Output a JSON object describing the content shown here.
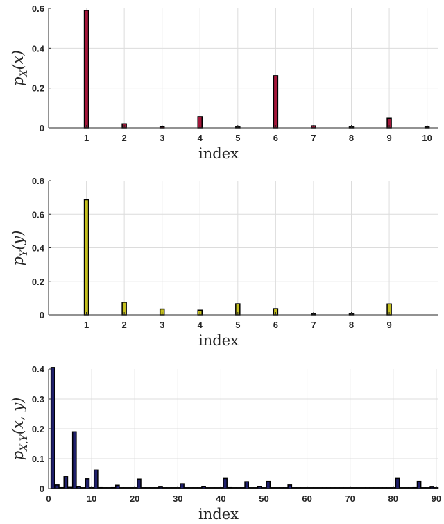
{
  "chart_data": [
    {
      "type": "bar",
      "x": [
        1,
        2,
        3,
        4,
        5,
        6,
        7,
        8,
        9,
        10
      ],
      "values": [
        0.59,
        0.02,
        0.006,
        0.056,
        0.003,
        0.262,
        0.01,
        0.003,
        0.048,
        0.002
      ],
      "xlabel": "index",
      "ylabel": "p_X(x)",
      "ylabel_main": "p",
      "ylabel_sub": "X",
      "ylabel_arg": "(x)",
      "xlim": [
        0,
        10.3
      ],
      "ylim": [
        0,
        0.6
      ],
      "xticks": [
        1,
        2,
        3,
        4,
        5,
        6,
        7,
        8,
        9,
        10
      ],
      "yticks": [
        0,
        0.2,
        0.4,
        0.6
      ],
      "ytick_labels": [
        "0",
        "0.2",
        "0.4",
        "0.6"
      ],
      "bar_color": "#a3163a",
      "grid": true
    },
    {
      "type": "bar",
      "x": [
        1,
        2,
        3,
        4,
        5,
        6,
        7,
        8,
        9
      ],
      "values": [
        0.686,
        0.075,
        0.035,
        0.028,
        0.066,
        0.037,
        0.002,
        0.002,
        0.065
      ],
      "xlabel": "index",
      "ylabel": "p_Y(y)",
      "ylabel_main": "p",
      "ylabel_sub": "Y",
      "ylabel_arg": "(y)",
      "xlim": [
        0,
        10.3
      ],
      "ylim": [
        0,
        0.8
      ],
      "xticks": [
        1,
        2,
        3,
        4,
        5,
        6,
        7,
        8,
        9
      ],
      "yticks": [
        0,
        0.2,
        0.4,
        0.6,
        0.8
      ],
      "ytick_labels": [
        "0",
        "0.2",
        "0.4",
        "0.6",
        "0.8"
      ],
      "bar_color": "#c4bf1f",
      "grid": true
    },
    {
      "type": "bar",
      "x": [
        1,
        2,
        3,
        4,
        5,
        6,
        7,
        8,
        9,
        10,
        11,
        12,
        13,
        14,
        15,
        16,
        17,
        18,
        19,
        20,
        21,
        22,
        23,
        24,
        25,
        26,
        27,
        28,
        29,
        30,
        31,
        32,
        33,
        34,
        35,
        36,
        37,
        38,
        39,
        40,
        41,
        42,
        43,
        44,
        45,
        46,
        47,
        48,
        49,
        50,
        51,
        52,
        53,
        54,
        55,
        56,
        57,
        58,
        59,
        60,
        61,
        62,
        63,
        64,
        65,
        66,
        67,
        68,
        69,
        70,
        71,
        72,
        73,
        74,
        75,
        76,
        77,
        78,
        79,
        80,
        81,
        82,
        83,
        84,
        85,
        86,
        87,
        88,
        89,
        90
      ],
      "values": [
        0.405,
        0.012,
        0.003,
        0.04,
        0.004,
        0.19,
        0.006,
        0.002,
        0.033,
        0.003,
        0.062,
        0.003,
        0.001,
        0.002,
        0.003,
        0.011,
        0.001,
        0.001,
        0.002,
        0.001,
        0.032,
        0.002,
        0.001,
        0.002,
        0.001,
        0.005,
        0.001,
        0.001,
        0.002,
        0.001,
        0.016,
        0.002,
        0.001,
        0.002,
        0.001,
        0.006,
        0.001,
        0.001,
        0.002,
        0.001,
        0.034,
        0.003,
        0.001,
        0.002,
        0.001,
        0.023,
        0.002,
        0.001,
        0.006,
        0.001,
        0.024,
        0.002,
        0.001,
        0.002,
        0.001,
        0.012,
        0.001,
        0.001,
        0.002,
        0.001,
        0.002,
        0.001,
        0.001,
        0.001,
        0.001,
        0.001,
        0.001,
        0.001,
        0.001,
        0.001,
        0.001,
        0.001,
        0.001,
        0.001,
        0.001,
        0.001,
        0.001,
        0.001,
        0.001,
        0.001,
        0.034,
        0.002,
        0.001,
        0.002,
        0.003,
        0.024,
        0.002,
        0.001,
        0.005,
        0.001
      ],
      "xlabel": "index",
      "ylabel": "p_{X,Y}(x,y)",
      "ylabel_main": "p",
      "ylabel_sub": "X,Y",
      "ylabel_arg": "(x, y)",
      "xlim": [
        0,
        90.5
      ],
      "ylim": [
        0,
        0.4
      ],
      "xticks": [
        0,
        10,
        20,
        30,
        40,
        50,
        60,
        70,
        80,
        90
      ],
      "yticks": [
        0,
        0.1,
        0.2,
        0.3,
        0.4
      ],
      "ytick_labels": [
        "0",
        "0.1",
        "0.2",
        "0.3",
        "0.4"
      ],
      "bar_color": "#1f1f6b",
      "grid": true
    }
  ]
}
